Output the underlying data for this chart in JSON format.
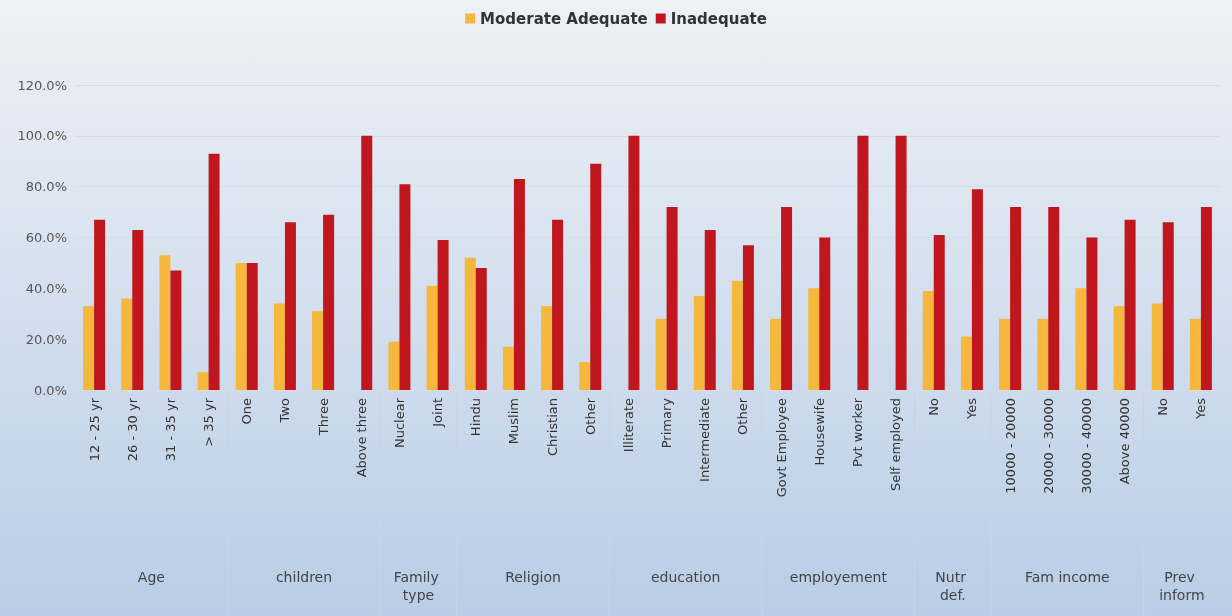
{
  "chart_data": {
    "type": "bar",
    "categories": [
      "12 - 25 yr",
      "26 - 30 yr",
      "31 - 35 yr",
      "> 35 yr",
      "One",
      "Two",
      "Three",
      "Above three",
      "Nuclear",
      "Joint",
      "Hindu",
      "Muslim",
      "Christian",
      "Other",
      "Illiterate",
      "Primary",
      "Intermediate",
      "Other",
      "Govt Employee",
      "Housewife",
      "Pvt worker",
      "Self employed",
      "No",
      "Yes",
      "10000 - 20000",
      "20000 - 30000",
      "30000 - 40000",
      "Above 40000",
      "No",
      "Yes"
    ],
    "annotations": [
      "Age",
      "children",
      "Family type",
      "Religion",
      "education",
      "employement",
      "Nutr def.",
      "Fam income",
      "Prev inform"
    ],
    "series": [
      {
        "name": "Moderate Adequate",
        "color": "#f5b83d",
        "values": [
          33,
          36,
          53,
          7,
          50,
          34,
          31,
          0,
          19,
          41,
          52,
          17,
          33,
          11,
          0,
          28,
          37,
          43,
          28,
          40,
          0,
          0,
          39,
          21,
          28,
          28,
          40,
          33,
          34,
          28
        ]
      },
      {
        "name": "Inadequate",
        "color": "#c0171f",
        "values": [
          67,
          63,
          47,
          93,
          50,
          66,
          69,
          100,
          81,
          59,
          48,
          83,
          67,
          89,
          100,
          72,
          63,
          57,
          72,
          60,
          100,
          100,
          61,
          79,
          72,
          72,
          60,
          67,
          66,
          72
        ]
      }
    ],
    "ylim": [
      0,
      120
    ],
    "yticks": [
      {
        "value": 0,
        "label": "0.0%"
      },
      {
        "value": 20,
        "label": "20.0%"
      },
      {
        "value": 40,
        "label": "40.0%"
      },
      {
        "value": 60,
        "label": "60.0%"
      },
      {
        "value": 80,
        "label": "80.0%"
      },
      {
        "value": 100,
        "label": "100.0%"
      },
      {
        "value": 120,
        "label": "120.0%"
      }
    ],
    "grid": "y",
    "legend": "top"
  }
}
